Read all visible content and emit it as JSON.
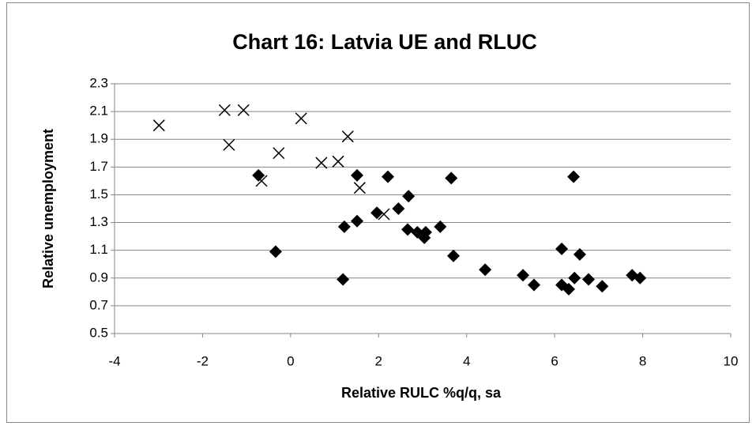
{
  "chart_data": {
    "type": "scatter",
    "title": "Chart 16: Latvia UE and RLUC",
    "x_label": "Relative RULC %q/q, sa",
    "y_label": "Relative unemployment",
    "xlim": [
      -4,
      10
    ],
    "xticks": [
      -4,
      -2,
      0,
      2,
      4,
      6,
      8,
      10
    ],
    "ylim": [
      0.5,
      2.3
    ],
    "yticks": [
      0.5,
      0.7,
      0.9,
      1.1,
      1.3,
      1.5,
      1.7,
      1.9,
      2.1,
      2.3
    ],
    "grid": true,
    "series": [
      {
        "color": "#000000",
        "marker": "x",
        "x": [
          -2.99,
          -1.5,
          -1.07,
          -1.4,
          -0.27,
          0.24,
          1.3,
          0.7,
          1.08,
          -0.66,
          1.57,
          2.12
        ],
        "values": [
          2.0,
          2.11,
          2.11,
          1.86,
          1.8,
          2.05,
          1.92,
          1.73,
          1.74,
          1.6,
          1.55,
          1.36
        ]
      },
      {
        "color": "#000000",
        "marker": "diamond",
        "x": [
          -0.73,
          -0.34,
          1.22,
          1.19,
          1.51,
          1.51,
          2.21,
          1.96,
          2.45,
          2.68,
          2.66,
          2.88,
          3.04,
          3.07,
          3.4,
          3.65,
          3.7,
          4.42,
          5.28,
          5.53,
          6.16,
          6.16,
          6.32,
          6.45,
          6.43,
          6.57,
          6.77,
          7.08,
          7.76,
          7.94
        ],
        "values": [
          1.64,
          1.09,
          1.27,
          0.89,
          1.64,
          1.31,
          1.63,
          1.37,
          1.4,
          1.49,
          1.25,
          1.23,
          1.19,
          1.23,
          1.27,
          1.62,
          1.06,
          0.96,
          0.92,
          0.85,
          1.11,
          0.85,
          0.82,
          0.9,
          1.63,
          1.07,
          0.89,
          0.84,
          0.92,
          0.9
        ]
      }
    ]
  }
}
